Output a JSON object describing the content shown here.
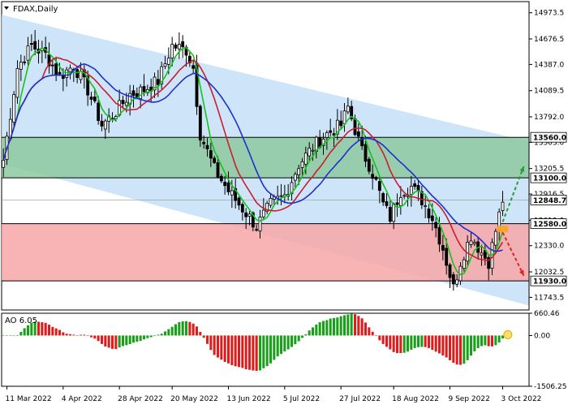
{
  "chart_data": [
    {
      "type": "candlestick",
      "title": "FDAX,Daily",
      "ylim": [
        11600,
        15100
      ],
      "y_ticks": [
        14973.5,
        14676.5,
        14387.0,
        14089.5,
        13792.0,
        13503.0,
        13205.5,
        12916.5,
        12619.0,
        12330.0,
        12032.5,
        11743.5
      ],
      "x_labels": [
        "11 Mar 2022",
        "4 Apr 2022",
        "28 Apr 2022",
        "20 May 2022",
        "13 Jun 2022",
        "5 Jul 2022",
        "27 Jul 2022",
        "18 Aug 2022",
        "9 Sep 2022",
        "3 Oct 2022"
      ],
      "channel": {
        "upper": [
          [
            0,
            14950
          ],
          [
            150,
            13510
          ]
        ],
        "lower": [
          [
            0,
            13260
          ],
          [
            150,
            11650
          ]
        ]
      },
      "zones": [
        {
          "from": 13100.0,
          "to": 13560.0,
          "color": "#8dc9a0"
        },
        {
          "from": 11930.0,
          "to": 12580.0,
          "color": "#f7a7a8"
        }
      ],
      "levels": [
        {
          "value": 13560.0,
          "label": "13560.0"
        },
        {
          "value": 13100.0,
          "label": "13100.0"
        },
        {
          "value": 12580.0,
          "label": "12580.0"
        },
        {
          "value": 11930.0,
          "label": "11930.0"
        }
      ],
      "current_price": {
        "value": 12848.7,
        "label": "12848.7"
      },
      "close_anchors": [
        [
          0,
          13300
        ],
        [
          4,
          14350
        ],
        [
          8,
          14600
        ],
        [
          12,
          14500
        ],
        [
          16,
          14250
        ],
        [
          20,
          14380
        ],
        [
          24,
          14100
        ],
        [
          28,
          13700
        ],
        [
          32,
          13850
        ],
        [
          36,
          14050
        ],
        [
          40,
          14100
        ],
        [
          44,
          14200
        ],
        [
          48,
          14600
        ],
        [
          52,
          14550
        ],
        [
          54,
          14350
        ],
        [
          56,
          13600
        ],
        [
          60,
          13200
        ],
        [
          64,
          12950
        ],
        [
          68,
          12750
        ],
        [
          72,
          12550
        ],
        [
          76,
          12800
        ],
        [
          80,
          12900
        ],
        [
          84,
          13250
        ],
        [
          88,
          13450
        ],
        [
          92,
          13600
        ],
        [
          96,
          13700
        ],
        [
          98,
          13900
        ],
        [
          100,
          13650
        ],
        [
          102,
          13400
        ],
        [
          104,
          13250
        ],
        [
          106,
          13050
        ],
        [
          108,
          12800
        ],
        [
          110,
          12650
        ],
        [
          113,
          12950
        ],
        [
          116,
          13000
        ],
        [
          119,
          12850
        ],
        [
          122,
          12650
        ],
        [
          125,
          12300
        ],
        [
          128,
          11850
        ],
        [
          130,
          12150
        ],
        [
          133,
          12450
        ],
        [
          136,
          12250
        ],
        [
          138,
          12150
        ],
        [
          140,
          12500
        ],
        [
          142,
          12850
        ]
      ],
      "ma_periods": [
        {
          "period": 5,
          "color": "#19c219"
        },
        {
          "period": 12,
          "color": "#c81e2d"
        },
        {
          "period": 20,
          "color": "#1c2fd1"
        }
      ],
      "arrows": [
        {
          "from": [
            142,
            12600
          ],
          "to": [
            148,
            13230
          ],
          "color": "#2a9a3a"
        },
        {
          "from": [
            142,
            12480
          ],
          "to": [
            148,
            11990
          ],
          "color": "#e0261b"
        }
      ],
      "price_marker": {
        "at": [
          142,
          12520
        ],
        "color": "#f5a623"
      }
    },
    {
      "type": "bar",
      "title": "AO 6.05",
      "ylim": [
        -1506.25,
        660.46
      ],
      "y_ticks": [
        660.46,
        0.0,
        -1506.25
      ],
      "series_colors": {
        "up": "#18a018",
        "down": "#e01b1b"
      }
    }
  ]
}
